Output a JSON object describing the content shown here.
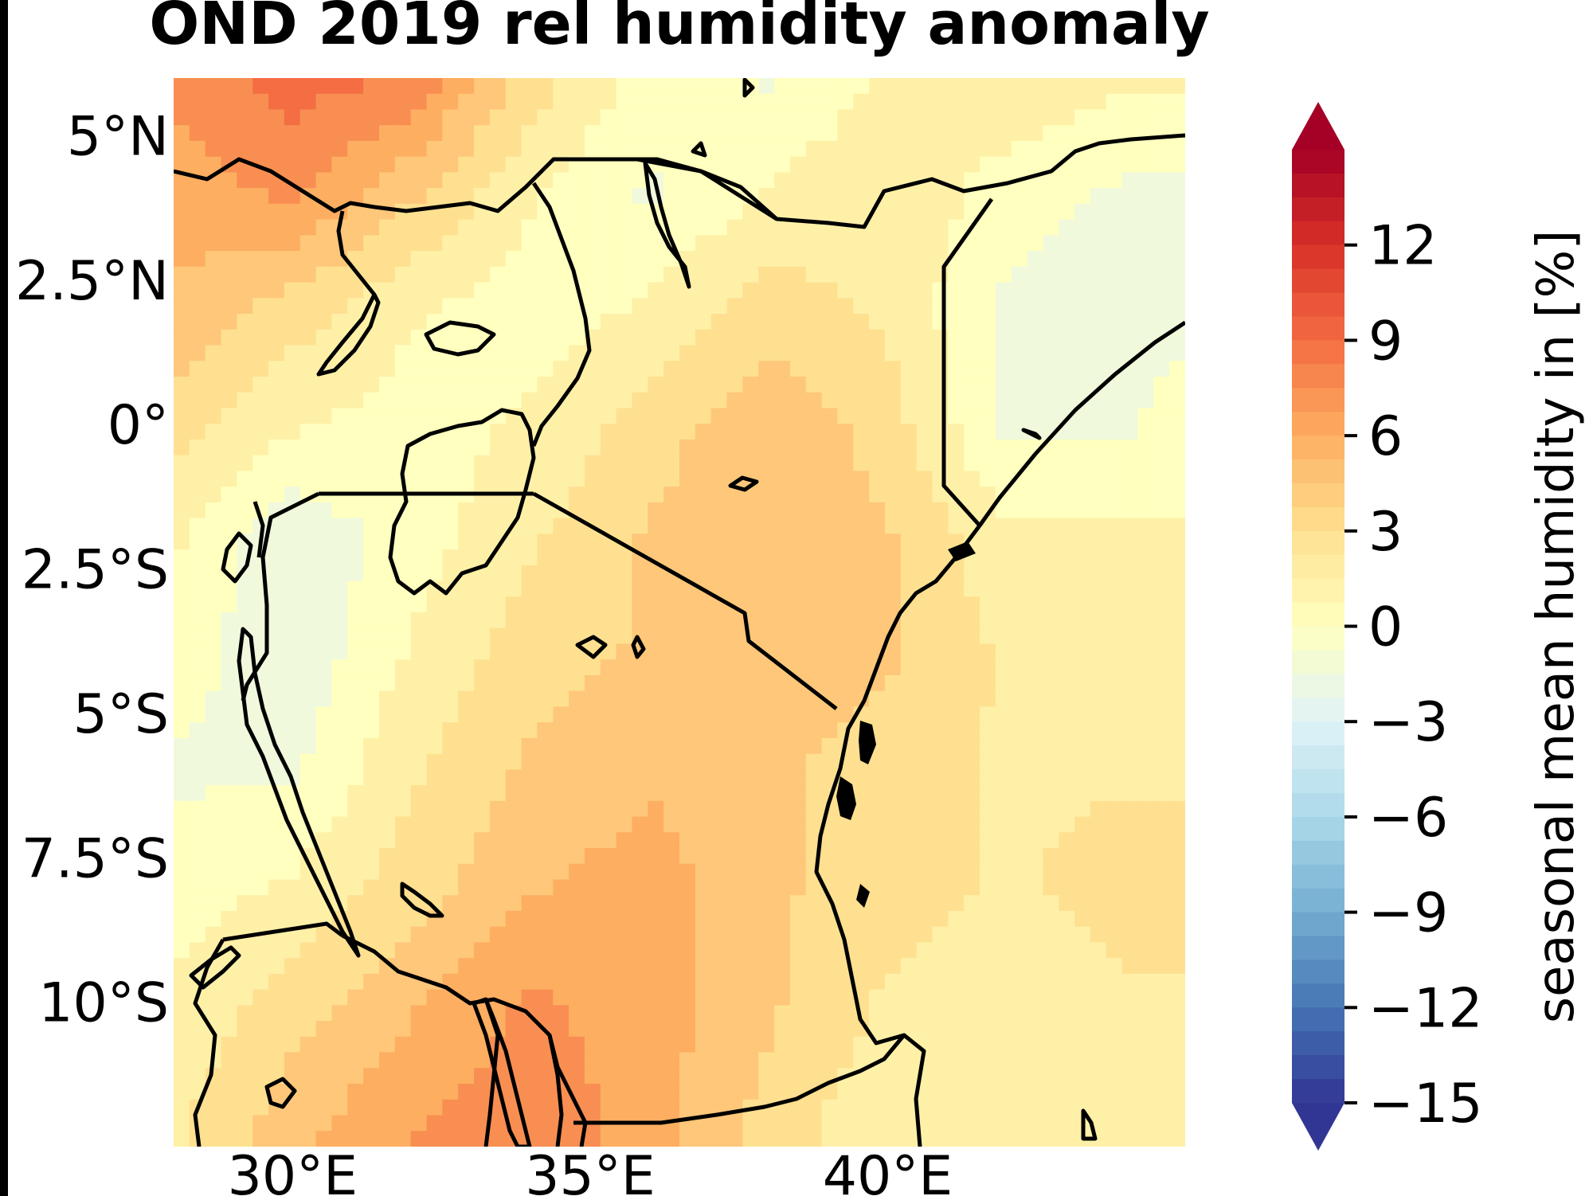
{
  "title": "OND 2019 rel humidity anomaly",
  "map": {
    "lon_range": [
      28,
      45
    ],
    "lat_range": [
      -12.5,
      6
    ],
    "lon_ticks": [
      {
        "value": 30,
        "label": "30°E"
      },
      {
        "value": 35,
        "label": "35°E"
      },
      {
        "value": 40,
        "label": "40°E"
      }
    ],
    "lat_ticks": [
      {
        "value": 5,
        "label": "5°N"
      },
      {
        "value": 2.5,
        "label": "2.5°N"
      },
      {
        "value": 0,
        "label": "0°"
      },
      {
        "value": -2.5,
        "label": "2.5°S"
      },
      {
        "value": -5,
        "label": "5°S"
      },
      {
        "value": -7.5,
        "label": "7.5°S"
      },
      {
        "value": -10,
        "label": "10°S"
      }
    ]
  },
  "colorbar": {
    "label": "seasonal mean humidity in [%]",
    "range": [
      -15,
      15
    ],
    "ticks": [
      {
        "value": 12,
        "label": "12"
      },
      {
        "value": 9,
        "label": "9"
      },
      {
        "value": 6,
        "label": "6"
      },
      {
        "value": 3,
        "label": "3"
      },
      {
        "value": 0,
        "label": "0"
      },
      {
        "value": -3,
        "label": "−3"
      },
      {
        "value": -6,
        "label": "−6"
      },
      {
        "value": -9,
        "label": "−9"
      },
      {
        "value": -12,
        "label": "−12"
      },
      {
        "value": -15,
        "label": "−15"
      }
    ],
    "colormap": "RdYlBu_r",
    "stops": [
      "#313695",
      "#4575b4",
      "#74add1",
      "#abd9e9",
      "#e0f3f8",
      "#ffffbf",
      "#fee090",
      "#fdae61",
      "#f46d43",
      "#d73027",
      "#a50026"
    ]
  },
  "field": {
    "description_grid_lon": [
      28,
      30,
      32,
      34,
      36,
      38,
      40,
      42,
      44,
      45
    ],
    "description_grid_lat": [
      6,
      4,
      2,
      0,
      -2,
      -4,
      -6,
      -8,
      -10,
      -12.5
    ],
    "values": [
      [
        7,
        9,
        8,
        3,
        0,
        -1,
        1,
        2,
        1,
        1
      ],
      [
        6,
        7,
        4,
        1,
        -1,
        1,
        2,
        0,
        -1,
        -1
      ],
      [
        5,
        3,
        1,
        0,
        1,
        3,
        2,
        -1,
        -2,
        -1
      ],
      [
        3,
        1,
        0,
        1,
        3,
        5,
        3,
        -1,
        -1,
        0
      ],
      [
        1,
        -2,
        0,
        2,
        4,
        5,
        4,
        1,
        1,
        1
      ],
      [
        0,
        -2,
        1,
        3,
        4,
        5,
        4,
        2,
        2,
        2
      ],
      [
        -1,
        -1,
        2,
        4,
        5,
        4,
        3,
        2,
        2,
        2
      ],
      [
        0,
        1,
        3,
        5,
        6,
        4,
        3,
        2,
        3,
        3
      ],
      [
        1,
        3,
        5,
        7,
        6,
        4,
        2,
        1,
        2,
        2
      ],
      [
        2,
        5,
        7,
        8,
        6,
        3,
        1,
        1,
        1,
        1
      ]
    ]
  }
}
